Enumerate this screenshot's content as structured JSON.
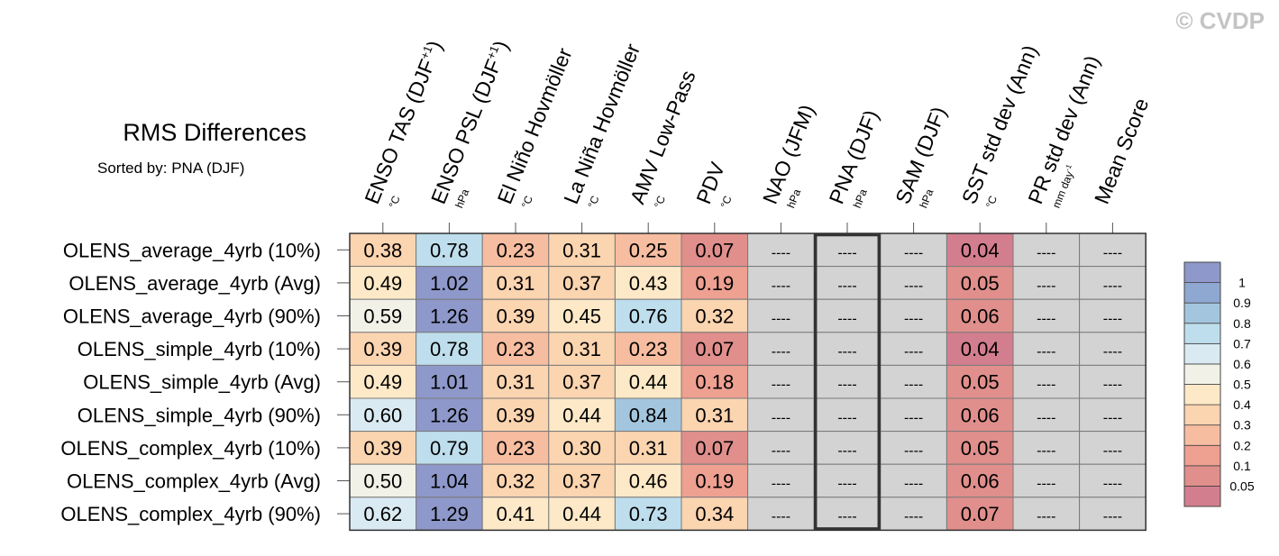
{
  "watermark": "© CVDP",
  "chart_data": {
    "type": "heatmap",
    "title": "RMS Differences",
    "subtitle": "Sorted by: PNA (DJF)",
    "columns": [
      {
        "label": "ENSO TAS (DJF",
        "sup": "+1",
        "close": ")",
        "unit": "°C"
      },
      {
        "label": "ENSO PSL (DJF",
        "sup": "+1",
        "close": ")",
        "unit": "hPa"
      },
      {
        "label": "El Niño Hovmöller",
        "sup": "",
        "close": "",
        "unit": "°C"
      },
      {
        "label": "La Niña Hovmöller",
        "sup": "",
        "close": "",
        "unit": "°C"
      },
      {
        "label": "AMV Low-Pass",
        "sup": "",
        "close": "",
        "unit": "°C"
      },
      {
        "label": "PDV",
        "sup": "",
        "close": "",
        "unit": "°C"
      },
      {
        "label": "NAO (JFM)",
        "sup": "",
        "close": "",
        "unit": "hPa"
      },
      {
        "label": "PNA (DJF)",
        "sup": "",
        "close": "",
        "unit": "hPa"
      },
      {
        "label": "SAM (DJF)",
        "sup": "",
        "close": "",
        "unit": "hPa"
      },
      {
        "label": "SST std dev (Ann)",
        "sup": "",
        "close": "",
        "unit": "°C"
      },
      {
        "label": "PR std dev (Ann)",
        "sup": "",
        "close": "",
        "unit": "mm day",
        "unit_sup": "-1"
      },
      {
        "label": "Mean Score",
        "sup": "",
        "close": "",
        "unit": ""
      }
    ],
    "rows": [
      "OLENS_average_4yrb (10%)",
      "OLENS_average_4yrb (Avg)",
      "OLENS_average_4yrb (90%)",
      "OLENS_simple_4yrb (10%)",
      "OLENS_simple_4yrb (Avg)",
      "OLENS_simple_4yrb (90%)",
      "OLENS_complex_4yrb (10%)",
      "OLENS_complex_4yrb (Avg)",
      "OLENS_complex_4yrb (90%)"
    ],
    "values": [
      [
        "0.38",
        "0.78",
        "0.23",
        "0.31",
        "0.25",
        "0.07",
        "----",
        "----",
        "----",
        "0.04",
        "----",
        "----"
      ],
      [
        "0.49",
        "1.02",
        "0.31",
        "0.37",
        "0.43",
        "0.19",
        "----",
        "----",
        "----",
        "0.05",
        "----",
        "----"
      ],
      [
        "0.59",
        "1.26",
        "0.39",
        "0.45",
        "0.76",
        "0.32",
        "----",
        "----",
        "----",
        "0.06",
        "----",
        "----"
      ],
      [
        "0.39",
        "0.78",
        "0.23",
        "0.31",
        "0.23",
        "0.07",
        "----",
        "----",
        "----",
        "0.04",
        "----",
        "----"
      ],
      [
        "0.49",
        "1.01",
        "0.31",
        "0.37",
        "0.44",
        "0.18",
        "----",
        "----",
        "----",
        "0.05",
        "----",
        "----"
      ],
      [
        "0.60",
        "1.26",
        "0.39",
        "0.44",
        "0.84",
        "0.31",
        "----",
        "----",
        "----",
        "0.06",
        "----",
        "----"
      ],
      [
        "0.39",
        "0.79",
        "0.23",
        "0.30",
        "0.31",
        "0.07",
        "----",
        "----",
        "----",
        "0.05",
        "----",
        "----"
      ],
      [
        "0.50",
        "1.04",
        "0.32",
        "0.37",
        "0.46",
        "0.19",
        "----",
        "----",
        "----",
        "0.06",
        "----",
        "----"
      ],
      [
        "0.62",
        "1.29",
        "0.41",
        "0.44",
        "0.73",
        "0.34",
        "----",
        "----",
        "----",
        "0.07",
        "----",
        "----"
      ]
    ],
    "highlighted_column": 7,
    "missing_color": "#d3d3d3",
    "colorbar": {
      "levels": [
        "0.05",
        "0.1",
        "0.2",
        "0.3",
        "0.4",
        "0.5",
        "0.6",
        "0.7",
        "0.8",
        "0.9",
        "1"
      ],
      "colors": [
        "#d37e8e",
        "#e08f8c",
        "#eea091",
        "#f7bda0",
        "#fbd4b0",
        "#fde9c7",
        "#f2f1e7",
        "#daeaf2",
        "#bedeed",
        "#a3c6de",
        "#8fa8d2",
        "#8e98ca"
      ]
    }
  }
}
